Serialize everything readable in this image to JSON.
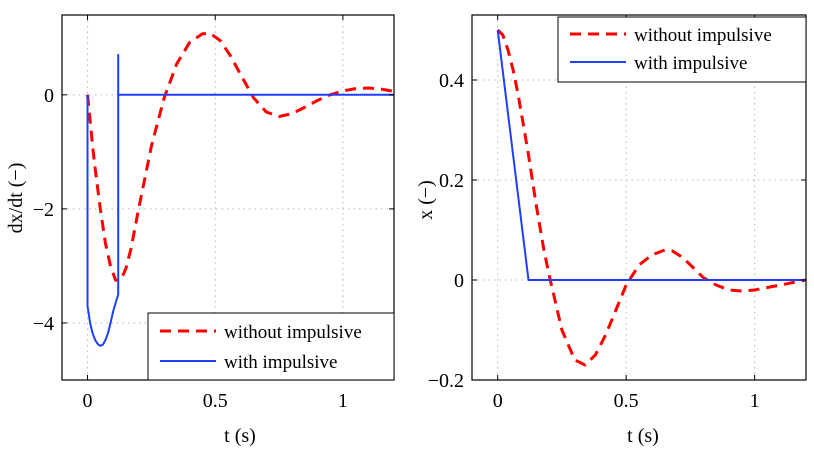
{
  "chart_data": [
    {
      "type": "line",
      "id": "left",
      "xlabel": "t (s)",
      "ylabel": "dx/dt (−)",
      "xlim": [
        -0.1,
        1.2
      ],
      "ylim": [
        -5,
        1.4
      ],
      "xticks": [
        0,
        0.5,
        1
      ],
      "xtick_labels": [
        "0",
        "0.5",
        "1"
      ],
      "yticks": [
        -4,
        -2,
        0
      ],
      "ytick_labels": [
        "−4",
        "−2",
        "0"
      ],
      "grid": true,
      "legend_position": "bottom-right",
      "series": [
        {
          "name": "without impulsive",
          "color": "#ff0000",
          "dash": "dashed",
          "x": [
            0,
            0.01,
            0.02,
            0.03,
            0.05,
            0.07,
            0.09,
            0.11,
            0.13,
            0.15,
            0.17,
            0.2,
            0.25,
            0.3,
            0.35,
            0.4,
            0.45,
            0.48,
            0.52,
            0.56,
            0.6,
            0.65,
            0.7,
            0.75,
            0.8,
            0.85,
            0.9,
            0.95,
            1.0,
            1.05,
            1.1,
            1.15,
            1.2
          ],
          "y": [
            0,
            -0.45,
            -0.9,
            -1.3,
            -2.0,
            -2.6,
            -3.0,
            -3.25,
            -3.25,
            -3.05,
            -2.7,
            -2.0,
            -0.9,
            -0.05,
            0.55,
            0.92,
            1.07,
            1.08,
            0.95,
            0.68,
            0.35,
            -0.05,
            -0.3,
            -0.38,
            -0.33,
            -0.22,
            -0.1,
            0.0,
            0.07,
            0.11,
            0.12,
            0.1,
            0.06
          ]
        },
        {
          "name": "with impulsive",
          "color": "#1f3fff",
          "dash": "solid",
          "x": [
            0,
            0,
            0.01,
            0.02,
            0.03,
            0.04,
            0.05,
            0.06,
            0.07,
            0.08,
            0.09,
            0.1,
            0.11,
            0.12,
            0.12,
            0.12,
            0.125,
            1.2
          ],
          "y": [
            0,
            -3.7,
            -4.0,
            -4.18,
            -4.3,
            -4.37,
            -4.4,
            -4.38,
            -4.3,
            -4.18,
            -4.0,
            -3.8,
            -3.65,
            -3.5,
            0.7,
            0,
            0,
            0
          ]
        }
      ]
    },
    {
      "type": "line",
      "id": "right",
      "xlabel": "t (s)",
      "ylabel": "x (−)",
      "xlim": [
        -0.1,
        1.2
      ],
      "ylim": [
        -0.2,
        0.53
      ],
      "xticks": [
        0,
        0.5,
        1
      ],
      "xtick_labels": [
        "0",
        "0.5",
        "1"
      ],
      "yticks": [
        -0.2,
        0,
        0.2,
        0.4
      ],
      "ytick_labels": [
        "−0.2",
        "0",
        "0.2",
        "0.4"
      ],
      "grid": true,
      "legend_position": "top-right",
      "series": [
        {
          "name": "without impulsive",
          "color": "#ff0000",
          "dash": "dashed",
          "x": [
            0,
            0.02,
            0.04,
            0.06,
            0.08,
            0.1,
            0.12,
            0.15,
            0.18,
            0.2,
            0.25,
            0.3,
            0.34,
            0.38,
            0.42,
            0.46,
            0.5,
            0.55,
            0.6,
            0.65,
            0.68,
            0.72,
            0.76,
            0.8,
            0.85,
            0.9,
            0.95,
            1.0,
            1.05,
            1.1,
            1.15,
            1.2
          ],
          "y": [
            0.5,
            0.49,
            0.46,
            0.42,
            0.37,
            0.31,
            0.25,
            0.15,
            0.06,
            0.01,
            -0.1,
            -0.16,
            -0.17,
            -0.15,
            -0.11,
            -0.06,
            -0.01,
            0.03,
            0.05,
            0.06,
            0.058,
            0.045,
            0.025,
            0.005,
            -0.01,
            -0.02,
            -0.022,
            -0.02,
            -0.015,
            -0.01,
            -0.005,
            0.0
          ]
        },
        {
          "name": "with impulsive",
          "color": "#1f3fff",
          "dash": "solid",
          "x": [
            0,
            0.12,
            1.2
          ],
          "y": [
            0.5,
            0.0,
            0.0
          ]
        }
      ]
    }
  ]
}
